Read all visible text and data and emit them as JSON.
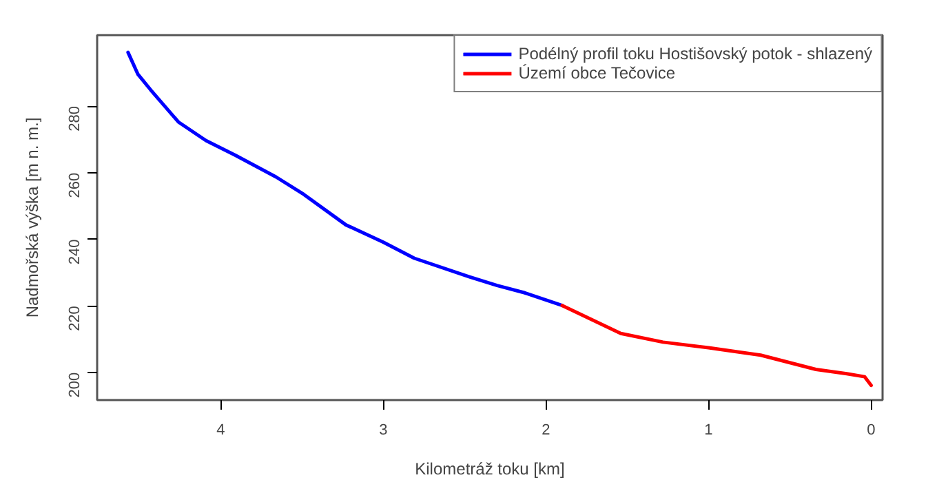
{
  "chart_data": {
    "type": "line",
    "xlabel": "Kilometráž toku [km]",
    "ylabel": "Nadmořská výška [m n. m.]",
    "xlim": [
      4.76,
      -0.07
    ],
    "ylim": [
      191.7,
      301.3
    ],
    "xticks": [
      4,
      3,
      2,
      1,
      0
    ],
    "yticks": [
      200,
      220,
      240,
      260,
      280
    ],
    "grid": false,
    "legend": "top right",
    "line_style": "solid",
    "marker": "none",
    "series": [
      {
        "name": "Podélný profil toku Hostišovský potok - shlazený",
        "color": "#0000ff",
        "x": [
          4.57,
          4.51,
          4.43,
          4.26,
          4.09,
          3.91,
          3.66,
          3.49,
          3.23,
          3.0,
          2.81,
          2.47,
          2.3,
          2.13,
          1.9
        ],
        "values": [
          296.1,
          289.6,
          284.8,
          275.2,
          269.6,
          265.2,
          258.7,
          253.5,
          244.3,
          239.1,
          234.3,
          228.7,
          226.1,
          223.9,
          220.1
        ]
      },
      {
        "name": "Území obce Tečovice",
        "color": "#ff0000",
        "x": [
          1.9,
          1.54,
          1.28,
          1.0,
          0.68,
          0.34,
          0.15,
          0.04,
          0.0
        ],
        "values": [
          220.1,
          211.7,
          209.1,
          207.4,
          205.2,
          200.9,
          199.6,
          198.7,
          196.1
        ]
      }
    ]
  }
}
